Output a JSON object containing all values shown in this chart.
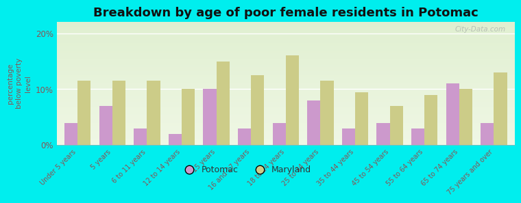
{
  "title": "Breakdown by age of poor female residents in Potomac",
  "ylabel": "percentage\nbelow poverty\nlevel",
  "categories": [
    "Under 5 years",
    "5 years",
    "6 to 11 years",
    "12 to 14 years",
    "15 years",
    "16 and 17 years",
    "18 to 24 years",
    "25 to 34 years",
    "35 to 44 years",
    "45 to 54 years",
    "55 to 64 years",
    "65 to 74 years",
    "75 years and over"
  ],
  "potomac_values": [
    4.0,
    7.0,
    3.0,
    2.0,
    10.0,
    3.0,
    4.0,
    8.0,
    3.0,
    4.0,
    3.0,
    11.0,
    4.0
  ],
  "maryland_values": [
    11.5,
    11.5,
    11.5,
    10.0,
    15.0,
    12.5,
    16.0,
    11.5,
    9.5,
    7.0,
    9.0,
    10.0,
    13.0
  ],
  "potomac_color": "#cc99cc",
  "maryland_color": "#cccc88",
  "background_color": "#00eeee",
  "ylim": [
    0,
    22
  ],
  "yticks": [
    0,
    10,
    20
  ],
  "ytick_labels": [
    "0%",
    "10%",
    "20%"
  ],
  "bar_width": 0.38,
  "title_fontsize": 13,
  "legend_labels": [
    "Potomac",
    "Maryland"
  ],
  "watermark": "City-Data.com",
  "tick_label_color": "#885555",
  "ylabel_color": "#885555",
  "legend_text_color": "#333333"
}
